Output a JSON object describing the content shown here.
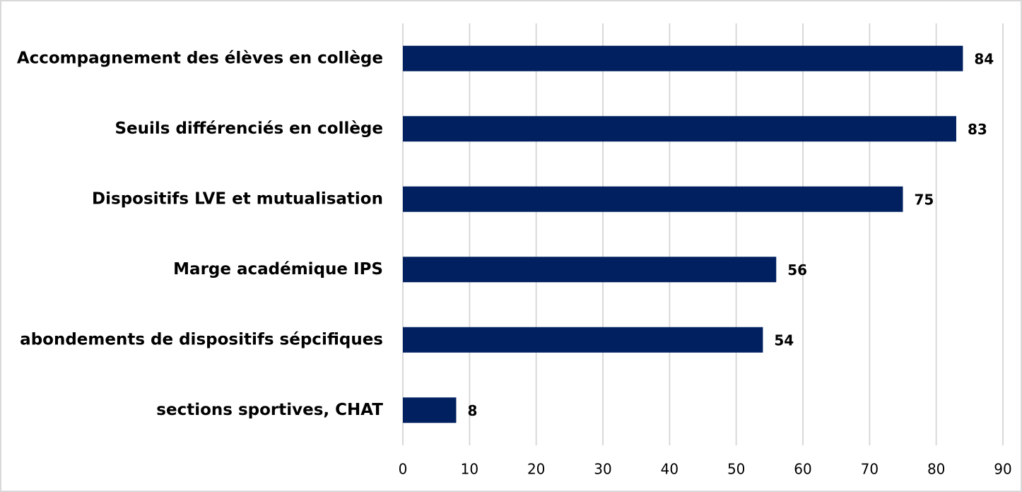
{
  "chart_data": {
    "type": "bar",
    "orientation": "horizontal",
    "categories": [
      "Accompagnement des élèves en collège",
      "Seuils différenciés en collège",
      "Dispositifs LVE et mutualisation",
      "Marge académique IPS",
      "abondements de dispositifs sépcifiques",
      "sections sportives, CHAT"
    ],
    "values": [
      84,
      83,
      75,
      56,
      54,
      8
    ],
    "color": "#002060",
    "xlim": [
      0,
      90
    ],
    "xticks": [
      0,
      10,
      20,
      30,
      40,
      50,
      60,
      70,
      80,
      90
    ],
    "grid": true
  }
}
